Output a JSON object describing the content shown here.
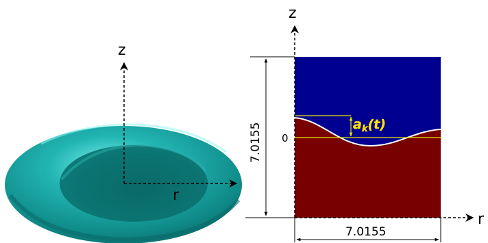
{
  "left_view": {
    "z_label": "z",
    "r_label": "r"
  },
  "right_view": {
    "z_label": "z",
    "r_label": "r",
    "height_label": "7.0155",
    "width_label": "7.0155",
    "zero_label": "0",
    "amplitude_label": "a",
    "amplitude_sub": "k",
    "amplitude_arg": "(t)"
  },
  "colors": {
    "disk": "#1aa3a3",
    "upper_fluid": "#000090",
    "lower_fluid": "#780000",
    "interface": "#ffffff",
    "reference_line": "#e6e600",
    "amplitude_label": "#ffe000"
  }
}
